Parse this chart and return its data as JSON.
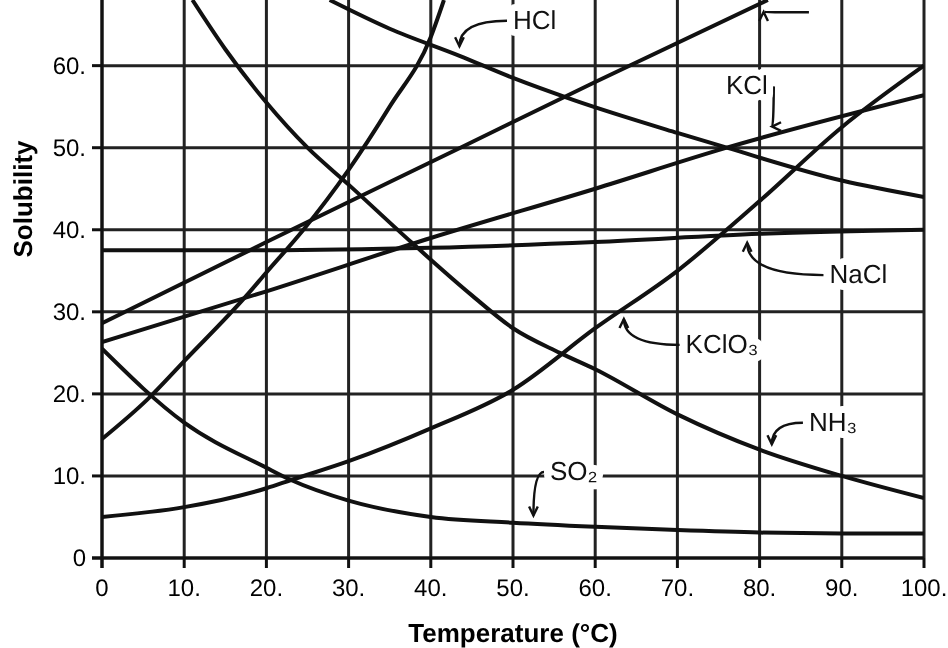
{
  "chart_data": {
    "type": "line",
    "xlabel": "Temperature (°C)",
    "ylabel": "Solubility",
    "xlim": [
      0,
      100
    ],
    "ylim": [
      0,
      68
    ],
    "xticks": [
      0,
      {
        "value": 10,
        "label": "10."
      },
      {
        "value": 20,
        "label": "20."
      },
      {
        "value": 30,
        "label": "30."
      },
      {
        "value": 40,
        "label": "40."
      },
      {
        "value": 50,
        "label": "50."
      },
      {
        "value": 60,
        "label": "60."
      },
      {
        "value": 70,
        "label": "70."
      },
      {
        "value": 80,
        "label": "80."
      },
      {
        "value": 90,
        "label": "90."
      },
      {
        "value": 100,
        "label": "100."
      }
    ],
    "yticks": [
      0,
      {
        "value": 10,
        "label": "10."
      },
      {
        "value": 20,
        "label": "20."
      },
      {
        "value": 30,
        "label": "30."
      },
      {
        "value": 40,
        "label": "40."
      },
      {
        "value": 50,
        "label": "50."
      },
      {
        "value": 60,
        "label": "60."
      }
    ],
    "grid": true,
    "marker": "none",
    "line_style": "solid",
    "legend": "right",
    "series": [
      {
        "name": "HCl",
        "color": "#111111",
        "x": [
          27.7,
          35,
          43.5,
          50,
          57.4,
          70,
          76,
          90,
          100
        ],
        "values": [
          68,
          64.5,
          61.2,
          58.5,
          55.8,
          51.8,
          50,
          46,
          44
        ]
      },
      {
        "name": "KCl",
        "color": "#111111",
        "x": [
          0,
          20,
          40,
          60,
          76,
          100
        ],
        "values": [
          26.3,
          32.5,
          39,
          45,
          50,
          56.4
        ]
      },
      {
        "name": "NaCl",
        "color": "#111111",
        "x": [
          0,
          20,
          40,
          60,
          80,
          100
        ],
        "values": [
          37.5,
          37.5,
          37.8,
          38.5,
          39.5,
          40
        ]
      },
      {
        "name": "KClO₃",
        "color": "#111111",
        "x": [
          0,
          10,
          20,
          23,
          30,
          40,
          50,
          60,
          70,
          80,
          90,
          100
        ],
        "values": [
          5,
          6.2,
          8.5,
          9.5,
          11.8,
          15.8,
          20.5,
          28,
          35,
          43.5,
          52.5,
          60
        ]
      },
      {
        "name": "NH₃",
        "color": "#111111",
        "x": [
          11,
          15,
          20,
          25,
          30,
          37.6,
          45,
          50,
          55.7,
          60,
          70,
          80,
          90,
          100
        ],
        "values": [
          68,
          62,
          55.5,
          50,
          45.5,
          38.5,
          32,
          28,
          25,
          23,
          17.5,
          13.2,
          10,
          7.3
        ]
      },
      {
        "name": "SO₂",
        "color": "#111111",
        "x": [
          0,
          10,
          20,
          23,
          30,
          40,
          50,
          60,
          70,
          80,
          90,
          100
        ],
        "values": [
          25.5,
          16.5,
          11,
          9.5,
          7,
          5,
          4.3,
          3.8,
          3.4,
          3.1,
          3,
          3
        ]
      },
      {
        "color": "#111111",
        "x": [
          0,
          20,
          43.6,
          60,
          81
        ],
        "values": [
          28.6,
          38.5,
          50,
          58,
          68
        ]
      },
      {
        "color": "#111111",
        "x": [
          0,
          5.5,
          10,
          17.6,
          20,
          24.5,
          30,
          35,
          40,
          41.6
        ],
        "values": [
          14.5,
          19.3,
          24,
          32,
          34.8,
          40,
          47.3,
          55,
          63.5,
          68
        ]
      }
    ]
  }
}
